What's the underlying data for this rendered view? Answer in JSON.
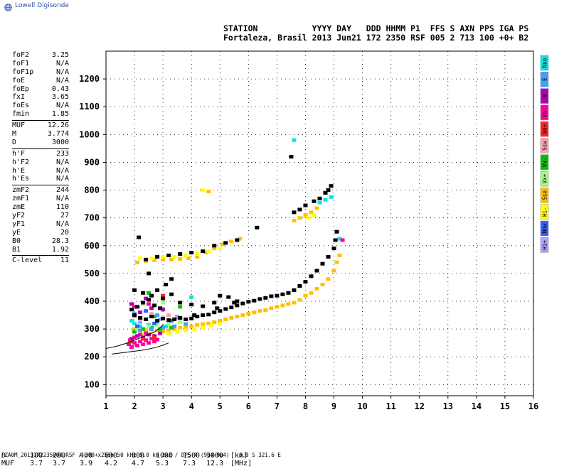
{
  "brand": {
    "name": "Lowell Digisonde"
  },
  "header": {
    "line1": "STATION           YYYY DAY   DDD HHMM P1  FFS S AXN PPS IGA PS",
    "line2": "Fortaleza, Brasil 2013 Jun21 172 2350 RSF 005 2 713 100 +0+ B2"
  },
  "params": [
    [
      {
        "label": "foF2",
        "value": "3.25"
      },
      {
        "label": "foF1",
        "value": "N/A"
      },
      {
        "label": "foF1p",
        "value": "N/A"
      },
      {
        "label": "foE",
        "value": "N/A"
      },
      {
        "label": "foEp",
        "value": "0.43"
      },
      {
        "label": "fxI",
        "value": "3.65"
      },
      {
        "label": "foEs",
        "value": "N/A"
      },
      {
        "label": "fmin",
        "value": "1.85"
      }
    ],
    [
      {
        "label": "MUF",
        "value": "12.26"
      },
      {
        "label": "M",
        "value": "3.774"
      },
      {
        "label": "D",
        "value": "3000"
      }
    ],
    [
      {
        "label": "h'F",
        "value": "233"
      },
      {
        "label": "h'F2",
        "value": "N/A"
      },
      {
        "label": "h'E",
        "value": "N/A"
      },
      {
        "label": "h'Es",
        "value": "N/A"
      }
    ],
    [
      {
        "label": "zmF2",
        "value": "244"
      },
      {
        "label": "zmF1",
        "value": "N/A"
      },
      {
        "label": "zmE",
        "value": "110"
      },
      {
        "label": "yF2",
        "value": "27"
      },
      {
        "label": "yF1",
        "value": "N/A"
      },
      {
        "label": "yE",
        "value": "20"
      },
      {
        "label": "B0",
        "value": "28.3"
      },
      {
        "label": "B1",
        "value": "1.92"
      }
    ],
    [
      {
        "label": "C-level",
        "value": "11"
      }
    ]
  ],
  "legend": [
    {
      "label": "Nne",
      "color": "#00e8e8"
    },
    {
      "label": "E",
      "color": "#40a0ff"
    },
    {
      "label": "W",
      "color": "#b000b0"
    },
    {
      "label": "Vo-",
      "color": "#ff00a0"
    },
    {
      "label": "Vo+",
      "color": "#ff2020"
    },
    {
      "label": "Ssw",
      "color": "#ffa0b0"
    },
    {
      "label": "Vx-",
      "color": "#00c000"
    },
    {
      "label": "Vx+",
      "color": "#a0ff80"
    },
    {
      "label": "Sse",
      "color": "#ffc000"
    },
    {
      "label": "Hi-",
      "color": "#ffff00"
    },
    {
      "label": "Nnw",
      "color": "#3060ff"
    },
    {
      "label": "Hi+",
      "color": "#b0a0ff"
    }
  ],
  "distance_table": {
    "d_label": "D",
    "d_values": [
      "100",
      "200",
      "400",
      "600",
      "800",
      "1000",
      "1500",
      "3000"
    ],
    "d_unit": "[km]",
    "muf_label": "MUF",
    "muf_values": [
      "3.7",
      "3.7",
      "3.9",
      "4.2",
      "4.7",
      "5.3",
      "7.3",
      "12.3"
    ],
    "muf_unit": "[MHz]"
  },
  "footer": "FZA0M_2013172235000.RSF / 300+x256h 50 kHz 5.0 km 2x2 / DPS-4 (904-904)   3.9 S 321.6 E",
  "chart_data": {
    "type": "scatter",
    "xlim": [
      1,
      16
    ],
    "ylim": [
      60,
      1300
    ],
    "xticks": [
      1,
      2,
      3,
      4,
      5,
      6,
      7,
      8,
      9,
      10,
      11,
      12,
      13,
      14,
      15,
      16
    ],
    "yticks": [
      100,
      200,
      300,
      400,
      500,
      600,
      700,
      800,
      900,
      1000,
      1100,
      1200
    ],
    "grid": "dotted",
    "profile_line": {
      "x": [
        3.0,
        2.85,
        2.7,
        2.5,
        2.3,
        2.15,
        2.0,
        1.85,
        1.7,
        1.55,
        1.45,
        1.35,
        1.2,
        1.0
      ],
      "y": [
        315,
        300,
        290,
        280,
        272,
        266,
        260,
        254,
        248,
        244,
        240,
        238,
        234,
        230
      ]
    },
    "lower_curve": {
      "x": [
        1.2,
        1.6,
        2.0,
        2.4,
        2.8,
        3.2
      ],
      "y": [
        210,
        215,
        220,
        226,
        235,
        250
      ]
    },
    "series": [
      {
        "name": "Sse",
        "color": "#ffc000",
        "points": [
          [
            2.0,
            300
          ],
          [
            2.2,
            295
          ],
          [
            2.4,
            296
          ],
          [
            2.6,
            298
          ],
          [
            2.8,
            295
          ],
          [
            3.0,
            292
          ],
          [
            3.2,
            295
          ],
          [
            3.4,
            300
          ],
          [
            3.6,
            305
          ],
          [
            3.8,
            308
          ],
          [
            4.0,
            310
          ],
          [
            4.2,
            315
          ],
          [
            4.4,
            318
          ],
          [
            4.6,
            320
          ],
          [
            4.8,
            325
          ],
          [
            5.0,
            330
          ],
          [
            5.2,
            335
          ],
          [
            5.4,
            340
          ],
          [
            5.6,
            345
          ],
          [
            5.8,
            350
          ],
          [
            6.0,
            355
          ],
          [
            6.2,
            360
          ],
          [
            6.4,
            365
          ],
          [
            6.6,
            368
          ],
          [
            6.8,
            375
          ],
          [
            7.0,
            380
          ],
          [
            7.2,
            385
          ],
          [
            7.4,
            390
          ],
          [
            7.6,
            395
          ],
          [
            7.8,
            405
          ],
          [
            8.0,
            420
          ],
          [
            8.2,
            430
          ],
          [
            8.4,
            445
          ],
          [
            8.6,
            460
          ],
          [
            8.8,
            480
          ],
          [
            9.0,
            510
          ],
          [
            9.1,
            540
          ],
          [
            9.2,
            565
          ],
          [
            2.1,
            540
          ],
          [
            2.4,
            545
          ],
          [
            2.7,
            548
          ],
          [
            3.0,
            550
          ],
          [
            3.3,
            550
          ],
          [
            3.6,
            552
          ],
          [
            3.9,
            555
          ],
          [
            4.2,
            560
          ],
          [
            4.5,
            575
          ],
          [
            4.8,
            590
          ],
          [
            5.1,
            605
          ],
          [
            5.4,
            615
          ],
          [
            5.7,
            625
          ],
          [
            7.6,
            690
          ],
          [
            7.8,
            700
          ],
          [
            8.0,
            710
          ],
          [
            8.2,
            720
          ],
          [
            8.4,
            735
          ],
          [
            4.6,
            795
          ]
        ]
      },
      {
        "name": "Hi-",
        "color": "#ffff00",
        "points": [
          [
            2.3,
            280
          ],
          [
            2.6,
            285
          ],
          [
            2.9,
            282
          ],
          [
            3.2,
            285
          ],
          [
            3.5,
            290
          ],
          [
            3.8,
            295
          ],
          [
            4.1,
            300
          ],
          [
            4.4,
            305
          ],
          [
            4.7,
            312
          ],
          [
            5.0,
            318
          ],
          [
            2.2,
            555
          ],
          [
            2.6,
            555
          ],
          [
            3.0,
            560
          ],
          [
            3.4,
            560
          ],
          [
            3.8,
            565
          ],
          [
            4.2,
            570
          ],
          [
            4.6,
            580
          ],
          [
            5.0,
            590
          ],
          [
            8.1,
            700
          ],
          [
            8.3,
            710
          ],
          [
            4.4,
            800
          ]
        ]
      },
      {
        "name": "Nne",
        "color": "#00e8e8",
        "points": [
          [
            2.0,
            320
          ],
          [
            2.2,
            310
          ],
          [
            2.5,
            315
          ],
          [
            2.8,
            318
          ],
          [
            3.1,
            310
          ],
          [
            1.9,
            330
          ],
          [
            2.4,
            335
          ],
          [
            8.7,
            765
          ],
          [
            8.5,
            755
          ],
          [
            8.9,
            775
          ],
          [
            9.2,
            625
          ],
          [
            7.6,
            980
          ],
          [
            4.0,
            415
          ],
          [
            3.5,
            345
          ]
        ]
      },
      {
        "name": "Vo-",
        "color": "#ff00a0",
        "points": [
          [
            1.8,
            245
          ],
          [
            1.9,
            235
          ],
          [
            2.0,
            250
          ],
          [
            2.1,
            240
          ],
          [
            2.2,
            255
          ],
          [
            2.3,
            245
          ],
          [
            2.4,
            260
          ],
          [
            2.5,
            250
          ],
          [
            2.6,
            265
          ],
          [
            2.7,
            255
          ],
          [
            2.8,
            262
          ],
          [
            1.85,
            260
          ],
          [
            2.0,
            270
          ],
          [
            2.2,
            280
          ],
          [
            2.4,
            285
          ],
          [
            2.0,
            380
          ],
          [
            2.5,
            390
          ],
          [
            9.3,
            620
          ]
        ]
      },
      {
        "name": "W",
        "color": "#b000b0",
        "points": [
          [
            1.9,
            265
          ],
          [
            2.1,
            275
          ],
          [
            2.3,
            270
          ],
          [
            2.5,
            280
          ],
          [
            2.7,
            275
          ],
          [
            2.9,
            285
          ],
          [
            2.2,
            360
          ],
          [
            2.6,
            375
          ],
          [
            3.0,
            370
          ],
          [
            1.9,
            390
          ],
          [
            2.4,
            410
          ]
        ]
      },
      {
        "name": "Vx-",
        "color": "#00c000",
        "points": [
          [
            2.0,
            290
          ],
          [
            2.3,
            300
          ],
          [
            2.6,
            305
          ],
          [
            2.9,
            300
          ],
          [
            3.3,
            305
          ],
          [
            2.2,
            340
          ],
          [
            2.7,
            345
          ],
          [
            2.5,
            430
          ],
          [
            3.6,
            380
          ]
        ]
      },
      {
        "name": "Vx+",
        "color": "#a0ff80",
        "points": [
          [
            2.1,
            300
          ],
          [
            2.5,
            310
          ],
          [
            2.8,
            315
          ],
          [
            3.2,
            320
          ],
          [
            3.6,
            325
          ],
          [
            2.3,
            390
          ],
          [
            3.0,
            395
          ]
        ]
      },
      {
        "name": "E",
        "color": "#40a0ff",
        "points": [
          [
            2.2,
            295
          ],
          [
            2.6,
            300
          ],
          [
            3.0,
            305
          ],
          [
            3.4,
            310
          ],
          [
            3.8,
            318
          ],
          [
            2.0,
            355
          ],
          [
            2.8,
            350
          ]
        ]
      },
      {
        "name": "Nnw",
        "color": "#3060ff",
        "points": [
          [
            2.1,
            310
          ],
          [
            2.7,
            320
          ],
          [
            3.3,
            330
          ],
          [
            2.4,
            365
          ]
        ]
      },
      {
        "name": "Vo+",
        "color": "#ff2020",
        "points": [
          [
            1.9,
            255
          ],
          [
            2.3,
            265
          ],
          [
            2.7,
            268
          ],
          [
            3.0,
            420
          ]
        ]
      },
      {
        "name": "Hi+",
        "color": "#b0a0ff",
        "points": [
          [
            2.2,
            325
          ],
          [
            2.9,
            335
          ],
          [
            3.5,
            340
          ]
        ]
      },
      {
        "name": "Ssw",
        "color": "#ffa0b0",
        "points": [
          [
            2.0,
            345
          ],
          [
            2.6,
            355
          ],
          [
            3.2,
            350
          ]
        ]
      },
      {
        "name": "",
        "color": "#000000",
        "points": [
          [
            2.0,
            350
          ],
          [
            2.2,
            340
          ],
          [
            2.4,
            335
          ],
          [
            2.6,
            345
          ],
          [
            2.8,
            330
          ],
          [
            3.0,
            338
          ],
          [
            3.2,
            332
          ],
          [
            3.4,
            335
          ],
          [
            3.6,
            340
          ],
          [
            3.8,
            335
          ],
          [
            4.0,
            338
          ],
          [
            4.2,
            345
          ],
          [
            4.4,
            350
          ],
          [
            4.6,
            352
          ],
          [
            4.8,
            360
          ],
          [
            5.0,
            365
          ],
          [
            5.2,
            372
          ],
          [
            5.4,
            378
          ],
          [
            5.6,
            385
          ],
          [
            5.8,
            392
          ],
          [
            6.0,
            398
          ],
          [
            6.2,
            402
          ],
          [
            6.4,
            408
          ],
          [
            6.6,
            412
          ],
          [
            6.8,
            418
          ],
          [
            7.0,
            420
          ],
          [
            7.2,
            425
          ],
          [
            7.4,
            430
          ],
          [
            7.6,
            440
          ],
          [
            7.8,
            455
          ],
          [
            8.0,
            470
          ],
          [
            8.2,
            490
          ],
          [
            8.4,
            510
          ],
          [
            8.6,
            535
          ],
          [
            8.8,
            560
          ],
          [
            9.0,
            590
          ],
          [
            9.05,
            620
          ],
          [
            9.1,
            650
          ],
          [
            2.0,
            440
          ],
          [
            2.3,
            430
          ],
          [
            2.6,
            420
          ],
          [
            2.8,
            440
          ],
          [
            3.0,
            410
          ],
          [
            3.3,
            425
          ],
          [
            3.6,
            395
          ],
          [
            4.0,
            388
          ],
          [
            4.4,
            382
          ],
          [
            4.8,
            395
          ],
          [
            5.0,
            420
          ],
          [
            5.3,
            415
          ],
          [
            5.6,
            400
          ],
          [
            2.4,
            550
          ],
          [
            2.8,
            560
          ],
          [
            3.2,
            565
          ],
          [
            3.6,
            570
          ],
          [
            4.0,
            575
          ],
          [
            4.4,
            580
          ],
          [
            4.8,
            600
          ],
          [
            5.2,
            610
          ],
          [
            5.6,
            620
          ],
          [
            3.3,
            480
          ],
          [
            3.1,
            460
          ],
          [
            2.5,
            500
          ],
          [
            8.8,
            800
          ],
          [
            8.7,
            790
          ],
          [
            8.9,
            815
          ],
          [
            8.5,
            770
          ],
          [
            8.3,
            760
          ],
          [
            8.0,
            745
          ],
          [
            7.8,
            730
          ],
          [
            7.6,
            720
          ],
          [
            1.9,
            370
          ],
          [
            2.1,
            380
          ],
          [
            2.3,
            395
          ],
          [
            2.5,
            405
          ],
          [
            2.7,
            385
          ],
          [
            2.9,
            375
          ],
          [
            6.3,
            665
          ],
          [
            4.1,
            350
          ],
          [
            4.9,
            375
          ],
          [
            5.5,
            395
          ],
          [
            2.15,
            630
          ],
          [
            7.5,
            920
          ]
        ]
      }
    ]
  }
}
